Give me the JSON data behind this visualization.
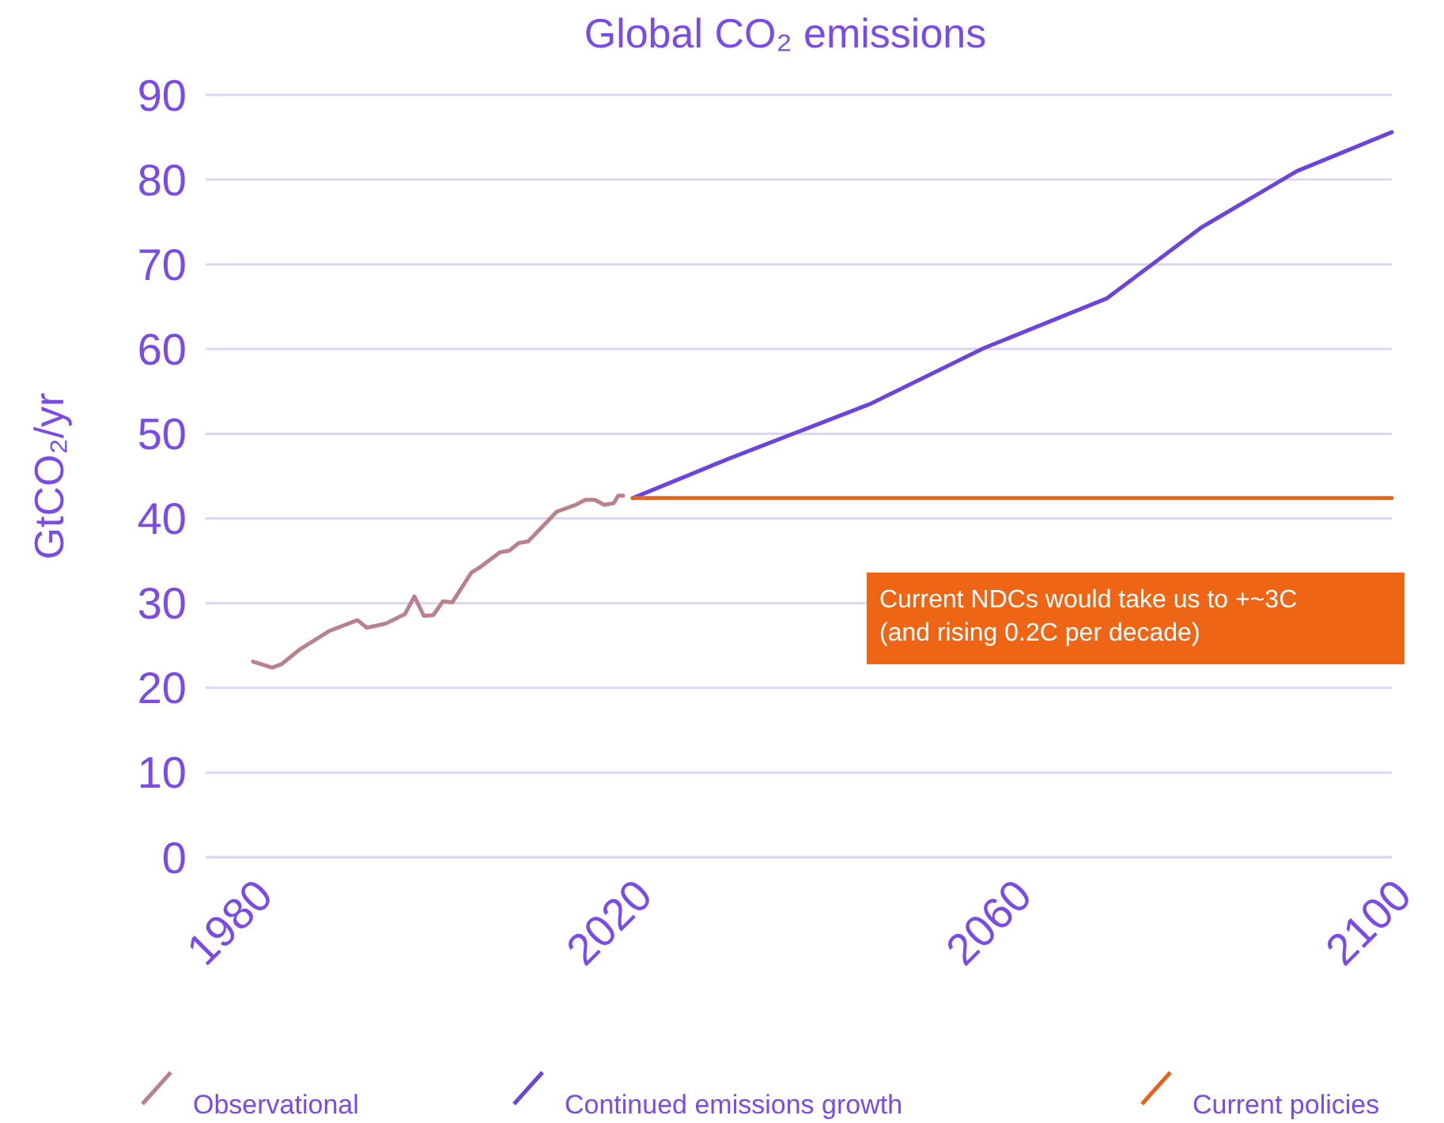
{
  "chart_data": {
    "type": "line",
    "title": "Global CO₂ emissions",
    "ylabel": "GtCO₂/yr",
    "xlim": [
      1975,
      2100
    ],
    "xticks": [
      1980,
      2020,
      2060,
      2100
    ],
    "ylim": [
      0,
      90
    ],
    "yticks": [
      0,
      10,
      20,
      30,
      40,
      50,
      60,
      70,
      80,
      90
    ],
    "grid": "y",
    "legend": "bottom",
    "marker": "none",
    "line_style": "solid",
    "series": [
      {
        "name": "Observational",
        "color": "#b9818c",
        "x": [
          1980,
          1982,
          1983,
          1985,
          1988,
          1991,
          1992,
          1994,
          1996,
          1997,
          1998,
          1999,
          2000,
          2001,
          2003,
          2004,
          2006,
          2007,
          2008,
          2009,
          2012,
          2014,
          2015,
          2016,
          2017,
          2018,
          2018.5,
          2019
        ],
        "values": [
          23.1,
          22.4,
          22.8,
          24.6,
          26.7,
          28.0,
          27.1,
          27.6,
          28.7,
          30.8,
          28.5,
          28.6,
          30.2,
          30.1,
          33.6,
          34.3,
          36.0,
          36.2,
          37.1,
          37.3,
          40.8,
          41.6,
          42.2,
          42.2,
          41.6,
          41.8,
          42.7,
          42.7
        ]
      },
      {
        "name": "Continued emissions growth",
        "color": "#6a44dc",
        "x": [
          2020,
          2030,
          2045,
          2057,
          2070,
          2080,
          2090,
          2100
        ],
        "values": [
          42.4,
          47.0,
          53.5,
          60.1,
          66.0,
          74.4,
          81.0,
          85.6
        ]
      },
      {
        "name": "Current policies",
        "color": "#e8641e",
        "x": [
          2020,
          2100
        ],
        "values": [
          42.4,
          42.4
        ]
      }
    ],
    "annotations": [
      "Current NDCs would take us to +~3C\n(and rising 0.2C per decade)"
    ]
  }
}
